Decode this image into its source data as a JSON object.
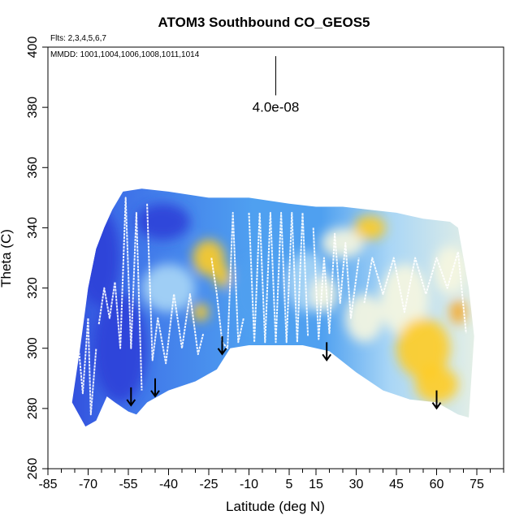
{
  "chart_data": {
    "type": "heatmap",
    "title": "ATOM3 Southbound CO_GEOS5",
    "flights_note": "Flts: 2,3,4,5,6,7",
    "dates_note": "MMDD: 1001,1004,1006,1008,1011,1014",
    "xlabel": "Latitude (deg N)",
    "ylabel": "Theta (C)",
    "xlim": [
      -85,
      85
    ],
    "ylim": [
      260,
      400
    ],
    "x_major_ticks": [
      -85,
      -70,
      -55,
      -40,
      -25,
      -10,
      5,
      15,
      30,
      45,
      60,
      75
    ],
    "x_minor_ticks": [
      -80,
      -75,
      -65,
      -60,
      -50,
      -45,
      -35,
      -30,
      -20,
      -15,
      -5,
      0,
      10,
      20,
      25,
      35,
      40,
      50,
      55,
      65,
      70,
      80,
      85
    ],
    "y_ticks": [
      260,
      280,
      300,
      320,
      340,
      360,
      380,
      400
    ],
    "scale_bar_label": "4.0e-08",
    "colormap": [
      "#3a1fb8",
      "#2d40d8",
      "#3d6fe8",
      "#4fa0f0",
      "#a9d6f6",
      "#f7f7e0",
      "#ffe27a",
      "#ffcc22",
      "#f5a623",
      "#e07a1a"
    ],
    "field_outline": {
      "upper": [
        [
          -76,
          282
        ],
        [
          -73,
          300
        ],
        [
          -70,
          320
        ],
        [
          -67,
          333
        ],
        [
          -64,
          340
        ],
        [
          -61,
          346
        ],
        [
          -57,
          352
        ],
        [
          -50,
          353
        ],
        [
          -40,
          352
        ],
        [
          -25,
          350
        ],
        [
          -10,
          350
        ],
        [
          5,
          348
        ],
        [
          15,
          347
        ],
        [
          25,
          347
        ],
        [
          35,
          346
        ],
        [
          45,
          345
        ],
        [
          55,
          343
        ],
        [
          65,
          342
        ],
        [
          68,
          340
        ],
        [
          70,
          330
        ],
        [
          72,
          320
        ],
        [
          74,
          304
        ]
      ],
      "lower": [
        [
          74,
          304
        ],
        [
          72,
          277
        ],
        [
          68,
          278
        ],
        [
          60,
          282
        ],
        [
          50,
          283
        ],
        [
          40,
          286
        ],
        [
          30,
          292
        ],
        [
          20,
          299
        ],
        [
          10,
          301
        ],
        [
          0,
          301
        ],
        [
          -10,
          301
        ],
        [
          -17,
          300
        ],
        [
          -22,
          293
        ],
        [
          -30,
          289
        ],
        [
          -40,
          286
        ],
        [
          -48,
          282
        ],
        [
          -52,
          278
        ],
        [
          -55,
          279
        ],
        [
          -60,
          282
        ],
        [
          -63,
          284
        ],
        [
          -67,
          276
        ],
        [
          -71,
          274
        ],
        [
          -76,
          282
        ]
      ]
    },
    "concentration_patches": [
      {
        "lat": -66,
        "theta": 330,
        "level": 1,
        "spread": [
          8,
          16
        ]
      },
      {
        "lat": -58,
        "theta": 300,
        "level": 1,
        "spread": [
          10,
          18
        ]
      },
      {
        "lat": -42,
        "theta": 342,
        "level": 1,
        "spread": [
          10,
          6
        ]
      },
      {
        "lat": -40,
        "theta": 320,
        "level": 4,
        "spread": [
          10,
          8
        ]
      },
      {
        "lat": -25,
        "theta": 330,
        "level": 7,
        "spread": [
          6,
          6
        ]
      },
      {
        "lat": -28,
        "theta": 312,
        "level": 7,
        "spread": [
          3,
          3
        ]
      },
      {
        "lat": -20,
        "theta": 324,
        "level": 7,
        "spread": [
          3,
          4
        ]
      },
      {
        "lat": -5,
        "theta": 318,
        "level": 3,
        "spread": [
          12,
          12
        ]
      },
      {
        "lat": 12,
        "theta": 322,
        "level": 4,
        "spread": [
          8,
          10
        ]
      },
      {
        "lat": 18,
        "theta": 318,
        "level": 5,
        "spread": [
          5,
          6
        ]
      },
      {
        "lat": 25,
        "theta": 335,
        "level": 5,
        "spread": [
          8,
          5
        ]
      },
      {
        "lat": 35,
        "theta": 340,
        "level": 7,
        "spread": [
          6,
          4
        ]
      },
      {
        "lat": 33,
        "theta": 310,
        "level": 5,
        "spread": [
          7,
          8
        ]
      },
      {
        "lat": 48,
        "theta": 316,
        "level": 5,
        "spread": [
          9,
          12
        ]
      },
      {
        "lat": 55,
        "theta": 300,
        "level": 7,
        "spread": [
          10,
          10
        ]
      },
      {
        "lat": 60,
        "theta": 288,
        "level": 7,
        "spread": [
          8,
          6
        ]
      },
      {
        "lat": 65,
        "theta": 326,
        "level": 5,
        "spread": [
          6,
          8
        ]
      },
      {
        "lat": 68,
        "theta": 312,
        "level": 8,
        "spread": [
          3,
          4
        ]
      }
    ],
    "flight_tracks": [
      [
        [
          -78,
          305
        ],
        [
          -76,
          290
        ],
        [
          -74,
          305
        ],
        [
          -72,
          285
        ],
        [
          -70,
          310
        ],
        [
          -69,
          278
        ],
        [
          -67,
          300
        ]
      ],
      [
        [
          -66,
          308
        ],
        [
          -64,
          320
        ],
        [
          -62,
          310
        ],
        [
          -60,
          322
        ],
        [
          -58,
          300
        ],
        [
          -56,
          350
        ],
        [
          -54,
          300
        ],
        [
          -52,
          345
        ],
        [
          -50,
          286
        ]
      ],
      [
        [
          -48,
          348
        ],
        [
          -46,
          296
        ],
        [
          -44,
          310
        ],
        [
          -41,
          295
        ],
        [
          -38,
          318
        ],
        [
          -35,
          300
        ],
        [
          -32,
          318
        ],
        [
          -29,
          298
        ],
        [
          -27,
          305
        ]
      ],
      [
        [
          -24,
          330
        ],
        [
          -22,
          318
        ],
        [
          -20,
          302
        ],
        [
          -18,
          300
        ],
        [
          -16,
          345
        ],
        [
          -14,
          302
        ],
        [
          -12,
          310
        ]
      ],
      [
        [
          -10,
          345
        ],
        [
          -8,
          302
        ],
        [
          -6,
          345
        ],
        [
          -4,
          302
        ],
        [
          -2,
          345
        ],
        [
          0,
          302
        ],
        [
          2,
          345
        ],
        [
          4,
          302
        ],
        [
          6,
          345
        ],
        [
          8,
          302
        ],
        [
          10,
          345
        ],
        [
          12,
          304
        ]
      ],
      [
        [
          14,
          340
        ],
        [
          16,
          303
        ],
        [
          18,
          330
        ],
        [
          20,
          305
        ],
        [
          22,
          338
        ],
        [
          24,
          315
        ],
        [
          26,
          335
        ],
        [
          28,
          310
        ],
        [
          31,
          330
        ]
      ],
      [
        [
          33,
          315
        ],
        [
          36,
          330
        ],
        [
          40,
          318
        ],
        [
          44,
          330
        ],
        [
          48,
          312
        ],
        [
          52,
          330
        ],
        [
          56,
          318
        ],
        [
          60,
          330
        ],
        [
          64,
          320
        ],
        [
          68,
          332
        ],
        [
          71,
          305
        ]
      ]
    ],
    "arrows": [
      {
        "lat": -54,
        "theta": 287
      },
      {
        "lat": -45,
        "theta": 290
      },
      {
        "lat": -20,
        "theta": 304
      },
      {
        "lat": 19,
        "theta": 302
      },
      {
        "lat": 60,
        "theta": 286
      }
    ],
    "scale_bar": {
      "lat": 0,
      "theta_top": 397,
      "theta_bottom": 384
    }
  }
}
